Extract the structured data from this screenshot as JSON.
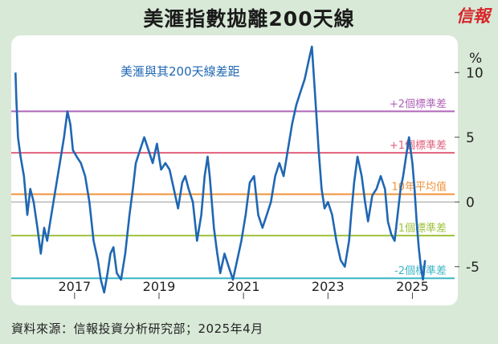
{
  "header": {
    "title": "美滙指數拋離200天線",
    "brand": "信報"
  },
  "source": "資料來源：信報投資分析研究部；2025年4月",
  "colors": {
    "background": "#d8e9d7",
    "line": "#1f67b3",
    "plus2": "#b063b8",
    "plus1": "#e0607a",
    "mean": "#f0923a",
    "minus1": "#9ec23d",
    "minus2": "#3bb6c6",
    "zero": "#999999"
  },
  "chart_data": {
    "type": "line",
    "title": "美滙與其200天線差距",
    "ylabel": "%",
    "ylim": [
      -7.5,
      12.5
    ],
    "yticks": [
      10,
      5,
      0,
      -5
    ],
    "xlim": [
      2015.5,
      2026.0
    ],
    "xticks": [
      2017,
      2019,
      2021,
      2023,
      2025
    ],
    "reference_lines": [
      {
        "name": "plus2",
        "label": "+2個標準差",
        "value": 7.0
      },
      {
        "name": "plus1",
        "label": "+1個標準差",
        "value": 3.8
      },
      {
        "name": "mean",
        "label": "10年平均值",
        "value": 0.6
      },
      {
        "name": "minus1",
        "label": "-1個標準差",
        "value": -2.6
      },
      {
        "name": "minus2",
        "label": "-2個標準差",
        "value": -5.9
      }
    ],
    "series": [
      {
        "name": "美滙與其200天線差距",
        "x": [
          2015.6,
          2015.62,
          2015.66,
          2015.72,
          2015.8,
          2015.88,
          2015.95,
          2016.03,
          2016.12,
          2016.2,
          2016.28,
          2016.35,
          2016.45,
          2016.55,
          2016.65,
          2016.75,
          2016.83,
          2016.9,
          2016.96,
          2017.05,
          2017.15,
          2017.25,
          2017.35,
          2017.45,
          2017.55,
          2017.62,
          2017.7,
          2017.78,
          2017.85,
          2017.92,
          2018.0,
          2018.1,
          2018.2,
          2018.3,
          2018.38,
          2018.45,
          2018.55,
          2018.65,
          2018.75,
          2018.85,
          2018.95,
          2019.05,
          2019.15,
          2019.25,
          2019.35,
          2019.45,
          2019.55,
          2019.62,
          2019.7,
          2019.8,
          2019.9,
          2020.0,
          2020.08,
          2020.15,
          2020.2,
          2020.25,
          2020.3,
          2020.38,
          2020.45,
          2020.55,
          2020.65,
          2020.75,
          2020.85,
          2020.95,
          2021.05,
          2021.15,
          2021.25,
          2021.35,
          2021.45,
          2021.55,
          2021.65,
          2021.75,
          2021.85,
          2021.95,
          2022.05,
          2022.15,
          2022.25,
          2022.35,
          2022.45,
          2022.55,
          2022.62,
          2022.68,
          2022.72,
          2022.78,
          2022.85,
          2022.92,
          2023.0,
          2023.1,
          2023.2,
          2023.3,
          2023.4,
          2023.5,
          2023.55,
          2023.62,
          2023.7,
          2023.8,
          2023.88,
          2023.95,
          2024.05,
          2024.15,
          2024.25,
          2024.35,
          2024.42,
          2024.5,
          2024.58,
          2024.65,
          2024.72,
          2024.78,
          2024.85,
          2024.92,
          2025.0,
          2025.05,
          2025.1,
          2025.15,
          2025.2,
          2025.25,
          2025.3
        ],
        "y": [
          10.0,
          8.0,
          5.0,
          3.5,
          2.0,
          -1.0,
          1.0,
          0.0,
          -2.0,
          -4.0,
          -2.0,
          -3.0,
          -1.0,
          1.0,
          3.0,
          5.0,
          7.0,
          6.0,
          4.0,
          3.5,
          3.0,
          2.0,
          0.0,
          -3.0,
          -4.5,
          -6.0,
          -7.0,
          -5.5,
          -4.0,
          -3.5,
          -5.5,
          -6.0,
          -4.0,
          -1.0,
          1.0,
          3.0,
          4.0,
          5.0,
          4.0,
          3.0,
          4.5,
          2.5,
          3.0,
          2.5,
          1.0,
          -0.5,
          1.5,
          2.0,
          1.0,
          0.0,
          -3.0,
          -1.0,
          2.0,
          3.5,
          2.0,
          0.0,
          -2.0,
          -4.0,
          -5.5,
          -4.0,
          -5.0,
          -6.0,
          -4.5,
          -3.0,
          -1.0,
          1.5,
          2.0,
          -1.0,
          -2.0,
          -1.0,
          0.0,
          2.0,
          3.0,
          2.0,
          4.0,
          6.0,
          7.5,
          8.5,
          9.5,
          11.0,
          12.0,
          9.0,
          7.0,
          4.0,
          1.0,
          -0.5,
          0.0,
          -1.0,
          -3.0,
          -4.5,
          -5.0,
          -3.0,
          -1.0,
          1.5,
          3.5,
          2.0,
          0.0,
          -1.5,
          0.5,
          1.0,
          2.0,
          1.0,
          -1.5,
          -2.5,
          -3.0,
          -1.0,
          1.0,
          2.0,
          3.5,
          5.0,
          3.0,
          1.0,
          -1.5,
          -3.5,
          -5.0,
          -6.0,
          -4.5
        ]
      }
    ]
  }
}
